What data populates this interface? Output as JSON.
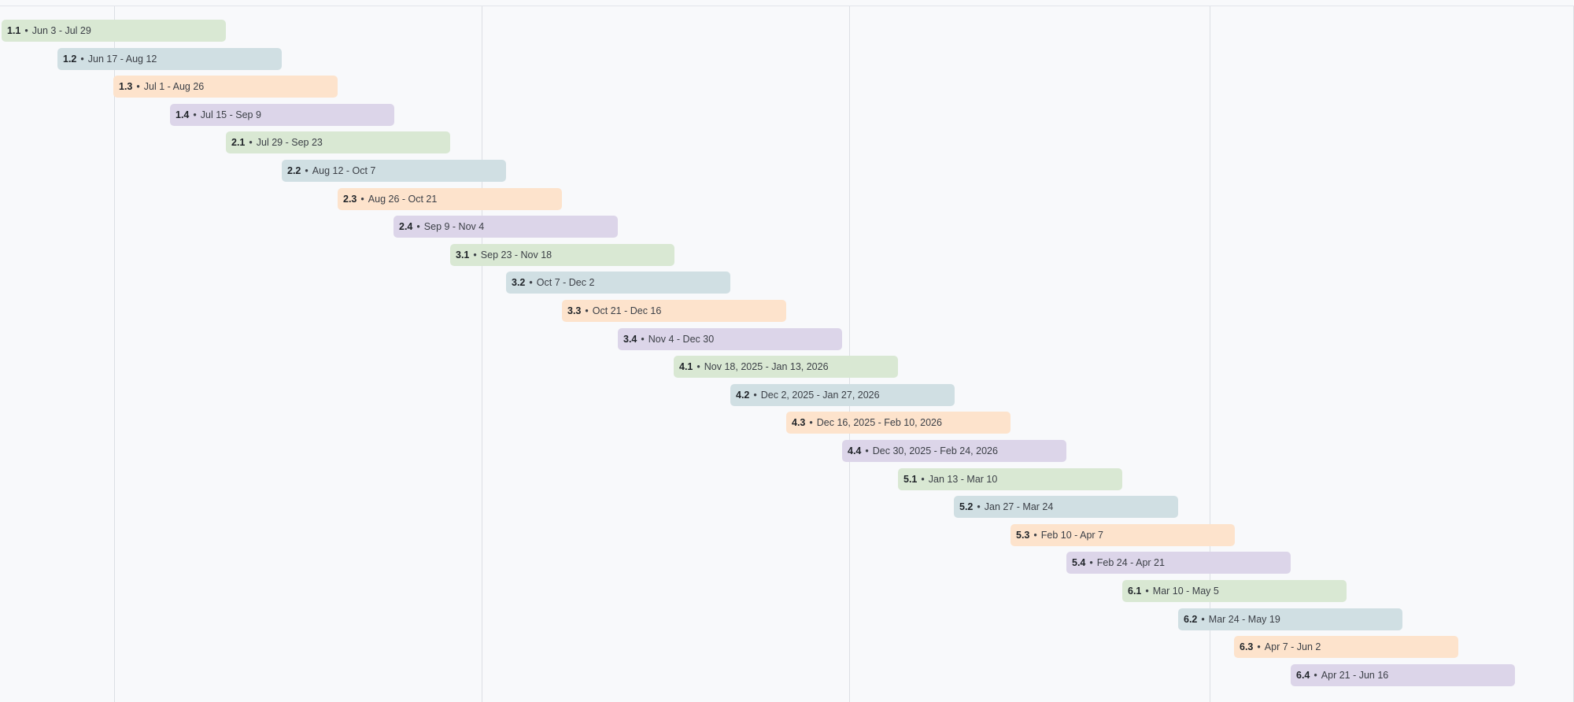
{
  "tasks": [
    {
      "id": "1.1",
      "sep": "•",
      "dates": "Jun 3 - Jul 29",
      "color": "green"
    },
    {
      "id": "1.2",
      "sep": "•",
      "dates": "Jun 17 - Aug 12",
      "color": "teal"
    },
    {
      "id": "1.3",
      "sep": "•",
      "dates": "Jul 1 - Aug 26",
      "color": "orange"
    },
    {
      "id": "1.4",
      "sep": "•",
      "dates": "Jul 15 - Sep 9",
      "color": "purple"
    },
    {
      "id": "2.1",
      "sep": "•",
      "dates": "Jul 29 - Sep 23",
      "color": "green"
    },
    {
      "id": "2.2",
      "sep": "•",
      "dates": "Aug 12 - Oct 7",
      "color": "teal"
    },
    {
      "id": "2.3",
      "sep": "•",
      "dates": "Aug 26 - Oct 21",
      "color": "orange"
    },
    {
      "id": "2.4",
      "sep": "•",
      "dates": "Sep 9 - Nov 4",
      "color": "purple"
    },
    {
      "id": "3.1",
      "sep": "•",
      "dates": "Sep 23 - Nov 18",
      "color": "green"
    },
    {
      "id": "3.2",
      "sep": "•",
      "dates": "Oct 7 - Dec 2",
      "color": "teal"
    },
    {
      "id": "3.3",
      "sep": "•",
      "dates": "Oct 21 - Dec 16",
      "color": "orange"
    },
    {
      "id": "3.4",
      "sep": "•",
      "dates": "Nov 4 - Dec 30",
      "color": "purple"
    },
    {
      "id": "4.1",
      "sep": "•",
      "dates": "Nov 18, 2025 - Jan 13, 2026",
      "color": "green"
    },
    {
      "id": "4.2",
      "sep": "•",
      "dates": "Dec 2, 2025 - Jan 27, 2026",
      "color": "teal"
    },
    {
      "id": "4.3",
      "sep": "•",
      "dates": "Dec 16, 2025 - Feb 10, 2026",
      "color": "orange"
    },
    {
      "id": "4.4",
      "sep": "•",
      "dates": "Dec 30, 2025 - Feb 24, 2026",
      "color": "purple"
    },
    {
      "id": "5.1",
      "sep": "•",
      "dates": "Jan 13 - Mar 10",
      "color": "green"
    },
    {
      "id": "5.2",
      "sep": "•",
      "dates": "Jan 27 - Mar 24",
      "color": "teal"
    },
    {
      "id": "5.3",
      "sep": "•",
      "dates": "Feb 10 - Apr 7",
      "color": "orange"
    },
    {
      "id": "5.4",
      "sep": "•",
      "dates": "Feb 24 - Apr 21",
      "color": "purple"
    },
    {
      "id": "6.1",
      "sep": "•",
      "dates": "Mar 10 - May 5",
      "color": "green"
    },
    {
      "id": "6.2",
      "sep": "•",
      "dates": "Mar 24 - May 19",
      "color": "teal"
    },
    {
      "id": "6.3",
      "sep": "•",
      "dates": "Apr 7 - Jun 2",
      "color": "orange"
    },
    {
      "id": "6.4",
      "sep": "•",
      "dates": "Apr 21 - Jun 16",
      "color": "purple"
    }
  ],
  "colors": {
    "green": "#d9e8d3",
    "teal": "#d0dfe3",
    "orange": "#fde3cc",
    "purple": "#dcd5e9",
    "background": "#f8f9fb",
    "gridline": "#dcdfe4"
  }
}
